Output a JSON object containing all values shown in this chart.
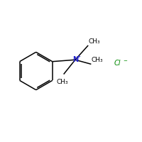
{
  "bg_color": "#ffffff",
  "bond_color": "#000000",
  "N_color": "#2222cc",
  "Cl_color": "#008800",
  "N_label": "N",
  "N_plus": "+",
  "Cl_label": "Cl",
  "Cl_minus": "−",
  "CH3_label": "CH₃",
  "figsize": [
    2.0,
    2.0
  ],
  "dpi": 100,
  "bond_lw": 1.1,
  "font_size_atom": 7,
  "font_size_group": 6.5,
  "font_size_cl": 7
}
